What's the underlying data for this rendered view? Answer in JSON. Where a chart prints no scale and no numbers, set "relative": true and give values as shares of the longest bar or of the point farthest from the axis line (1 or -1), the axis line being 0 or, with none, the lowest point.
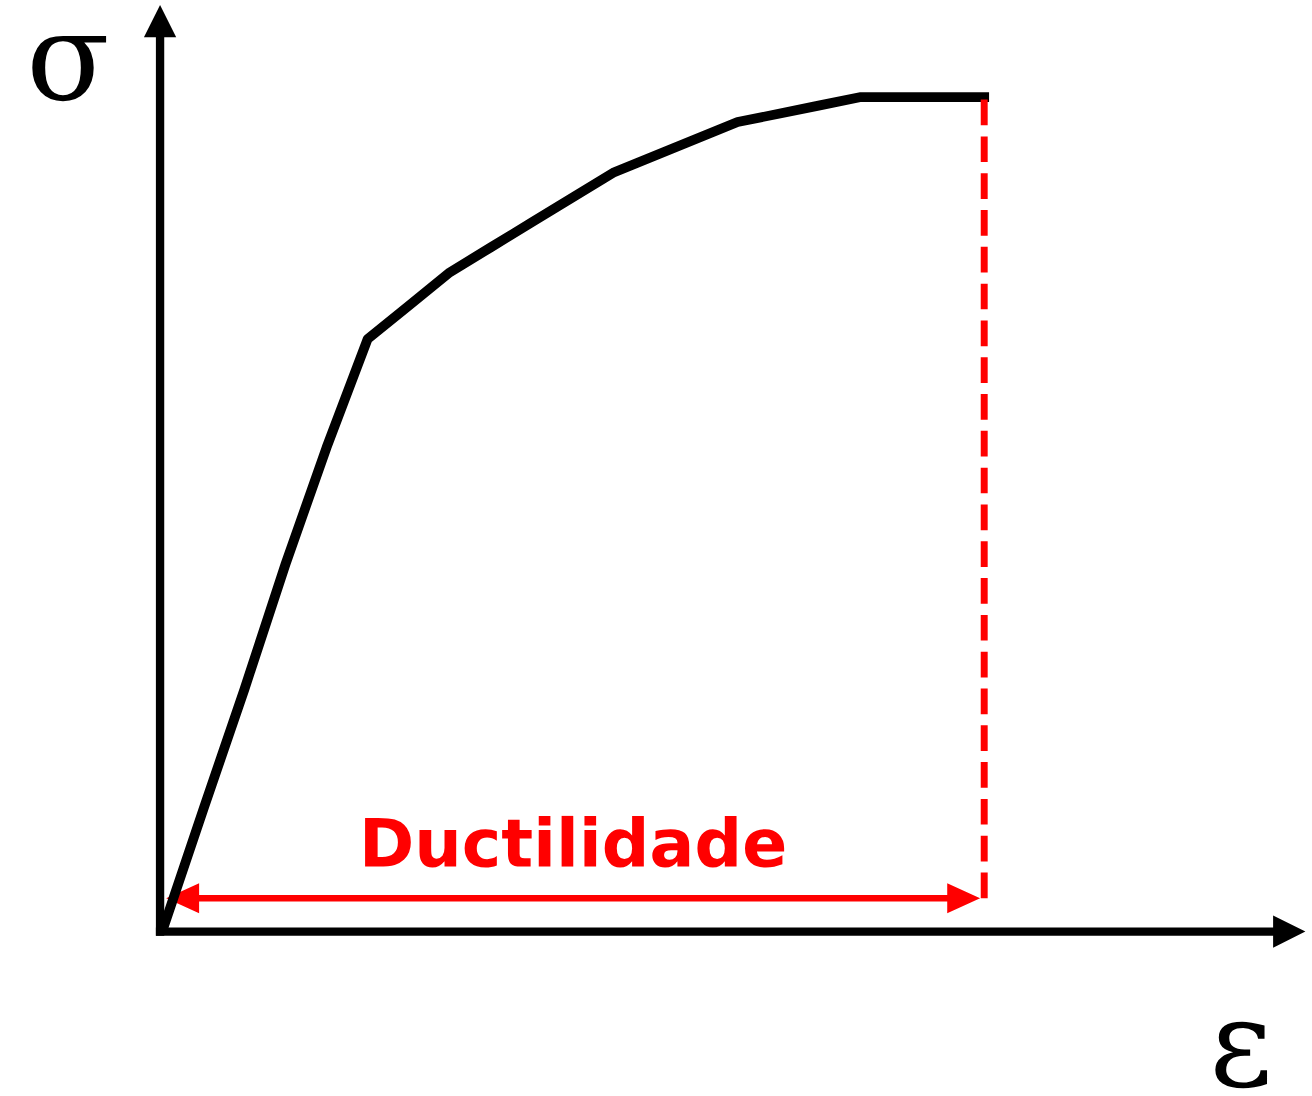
{
  "chart_data": {
    "type": "line",
    "relative": true,
    "xlabel": "ε",
    "ylabel": "σ",
    "categories": [
      null,
      null,
      null,
      null,
      null,
      null,
      null,
      null,
      null,
      null,
      null,
      null,
      null,
      null,
      null,
      null,
      null,
      null,
      null,
      null,
      null
    ],
    "series": [
      {
        "color": "#000000",
        "values": [
          0,
          0.146,
          0.29,
          0.44,
          0.58,
          0.71,
          0.75,
          0.79,
          0.82,
          0.85,
          0.88,
          0.91,
          0.93,
          0.95,
          0.97,
          0.98,
          0.99,
          1.0,
          1.0,
          1.0,
          1.0
        ]
      }
    ],
    "annotations": [
      "Ductilidade"
    ],
    "grid": false,
    "legend": false,
    "marker": "none",
    "line_style": "solid"
  }
}
